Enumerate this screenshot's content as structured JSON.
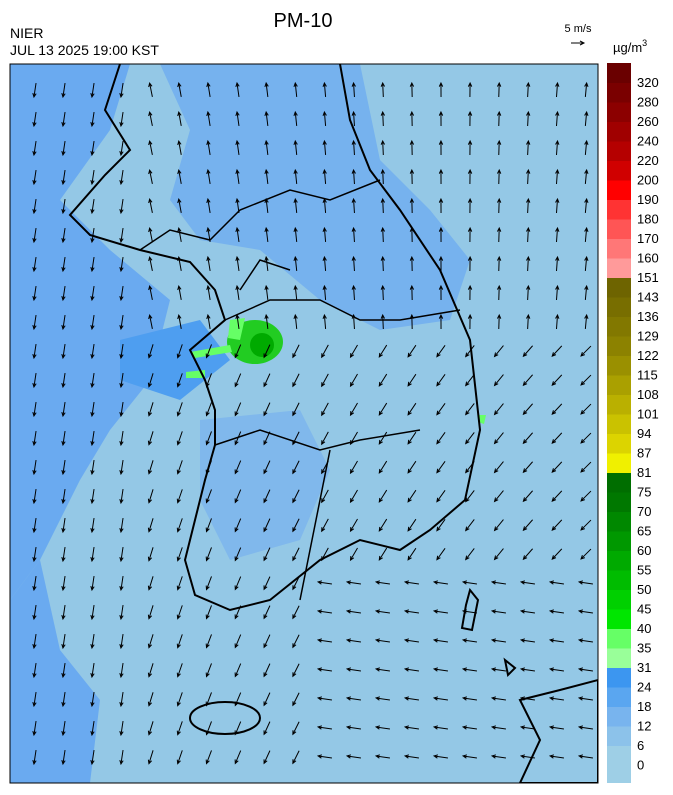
{
  "header": {
    "title": "PM-10",
    "agency": "NIER",
    "datetime": "JUL 13 2025 19:00 KST",
    "wind_scale": "5 m/s"
  },
  "colorbar": {
    "unit": "µg/m",
    "unit_exponent": "3",
    "labels": [
      0,
      6,
      12,
      18,
      24,
      31,
      35,
      40,
      45,
      50,
      55,
      60,
      65,
      70,
      75,
      81,
      87,
      94,
      101,
      108,
      115,
      122,
      129,
      136,
      143,
      151,
      160,
      170,
      180,
      190,
      200,
      220,
      240,
      260,
      280,
      320
    ],
    "colors": [
      "#9ecfe6",
      "#8cc2ea",
      "#78b4ee",
      "#5aa6f0",
      "#3c96f0",
      "#99ff99",
      "#66ff66",
      "#00e600",
      "#00d000",
      "#00bc00",
      "#00aa00",
      "#009800",
      "#008800",
      "#007800",
      "#006e00",
      "#f0f000",
      "#dcd400",
      "#cac200",
      "#bab000",
      "#aaa000",
      "#9a9000",
      "#8c8200",
      "#827800",
      "#786e00",
      "#6e6400",
      "#ff9a9a",
      "#ff7777",
      "#ff5555",
      "#ff3333",
      "#ff0000",
      "#d00000",
      "#b50000",
      "#a00000",
      "#8c0000",
      "#7a0000",
      "#6a0000"
    ]
  }
}
